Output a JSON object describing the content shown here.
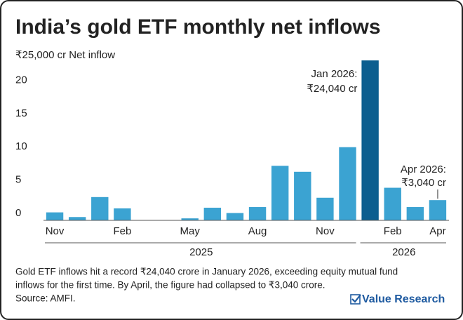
{
  "chart_data": {
    "type": "bar",
    "title": "India’s gold ETF monthly net inflows",
    "categories": [
      "Nov",
      null,
      null,
      "Feb",
      null,
      null,
      "May",
      null,
      null,
      "Aug",
      null,
      null,
      "Nov",
      null,
      null,
      "Feb",
      null,
      "Apr"
    ],
    "values": [
      1.2,
      0.5,
      3.5,
      1.8,
      0,
      0,
      0.3,
      1.9,
      1.1,
      2.0,
      8.2,
      7.3,
      3.4,
      11.0,
      24.04,
      4.9,
      2.0,
      3.04
    ],
    "colors": [
      "#3ba3d2",
      "#3ba3d2",
      "#3ba3d2",
      "#3ba3d2",
      "#3ba3d2",
      "#3ba3d2",
      "#3ba3d2",
      "#3ba3d2",
      "#3ba3d2",
      "#3ba3d2",
      "#3ba3d2",
      "#3ba3d2",
      "#3ba3d2",
      "#3ba3d2",
      "#0c5e8f",
      "#3ba3d2",
      "#3ba3d2",
      "#3ba3d2"
    ],
    "ylim": [
      0,
      25
    ],
    "yticks": [
      0,
      5,
      10,
      15,
      20,
      {
        "value": 25,
        "label": "₹25,000 cr Net inflow"
      }
    ],
    "grid": false,
    "year_labels": [
      "2025",
      "2026"
    ],
    "annotations": [
      {
        "lines": [
          "Jan 2026:",
          "₹24,040 cr"
        ]
      },
      {
        "lines": [
          "Apr 2026:",
          "₹3,040 cr"
        ]
      }
    ],
    "footnote": [
      "Gold ETF inflows hit a record ₹24,040 crore in January 2026, exceeding equity mutual fund",
      "inflows for the first time. By April, the figure had collapsed to ₹3,040 crore."
    ],
    "source": "Source: AMFI.",
    "brand": "Value Research"
  }
}
